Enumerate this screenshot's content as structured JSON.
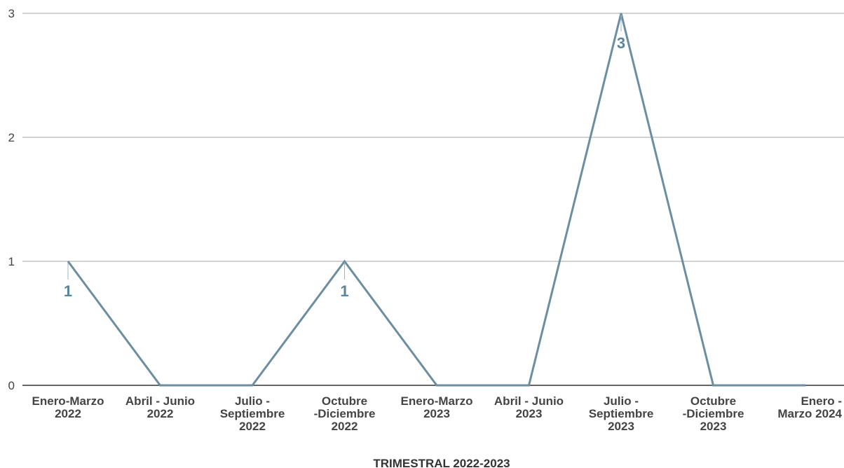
{
  "chart_data": {
    "type": "line",
    "title": "",
    "xlabel": "TRIMESTRAL 2022-2023",
    "ylabel": "",
    "categories": [
      "Enero-Marzo 2022",
      "Abril - Junio 2022",
      "Julio - Septiembre 2022",
      "Octubre -Diciembre 2022",
      "Enero-Marzo 2023",
      "Abril - Junio 2023",
      "Julio - Septiembre 2023",
      "Octubre -Diciembre 2023",
      "Enero - Marzo 2024"
    ],
    "category_label_lines": [
      [
        "Enero-Marzo",
        "2022"
      ],
      [
        "Abril - Junio",
        "2022"
      ],
      [
        "Julio -",
        "Septiembre",
        "2022"
      ],
      [
        "Octubre",
        "-Diciembre",
        "2022"
      ],
      [
        "Enero-Marzo",
        "2023"
      ],
      [
        "Abril - Junio",
        "2023"
      ],
      [
        "Julio -",
        "Septiembre",
        "2023"
      ],
      [
        "Octubre",
        "-Diciembre",
        "2023"
      ],
      [
        "Enero -",
        "Marzo 2024"
      ]
    ],
    "series": [
      {
        "values": [
          1,
          0,
          0,
          1,
          0,
          0,
          3,
          0,
          0
        ]
      }
    ],
    "data_labels": [
      {
        "index": 0,
        "text": "1"
      },
      {
        "index": 3,
        "text": "1"
      },
      {
        "index": 6,
        "text": "3"
      }
    ],
    "ylim": [
      0,
      3
    ],
    "yticks": [
      0,
      1,
      2,
      3
    ],
    "grid": true,
    "legend": "none",
    "colors": {
      "line": "#6b8ea3",
      "label": "#5a85a0",
      "grid": "#c4c4c4",
      "axis": "#333333"
    }
  }
}
